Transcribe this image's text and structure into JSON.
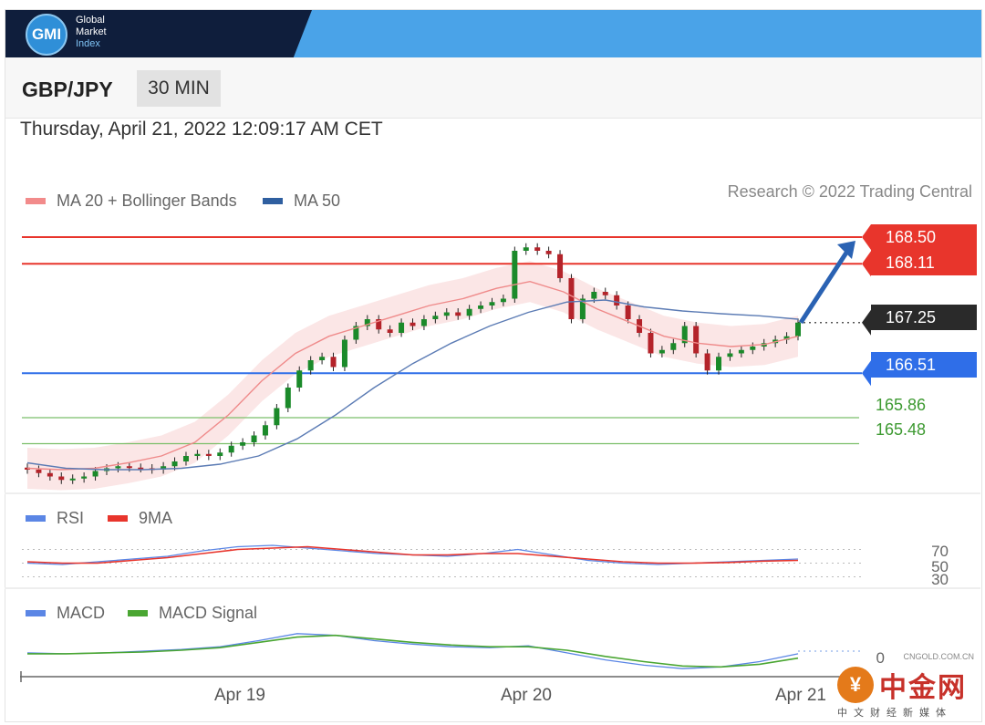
{
  "brand": {
    "logo": "GMI",
    "line1": "Global",
    "line2": "Market",
    "line3": "Index"
  },
  "header": {
    "symbol": "GBP/JPY",
    "timeframe": "30 MIN"
  },
  "datetime": "Thursday, April 21, 2022 12:09:17 AM CET",
  "legend": {
    "ma20": "MA 20 + Bollinger Bands",
    "ma50": "MA 50",
    "credit": "Research © 2022 Trading Central",
    "colors": {
      "ma20": "#f28b8b",
      "ma50": "#2f5fa0"
    }
  },
  "levels": [
    {
      "value": 168.5,
      "label": "168.50",
      "kind": "resistance",
      "color": "#e8352c"
    },
    {
      "value": 168.11,
      "label": "168.11",
      "kind": "resistance",
      "color": "#e8352c"
    },
    {
      "value": 167.25,
      "label": "167.25",
      "kind": "last",
      "color": "#222222"
    },
    {
      "value": 166.51,
      "label": "166.51",
      "kind": "pivot",
      "color": "#2f6ee8"
    },
    {
      "value": 165.86,
      "label": "165.86",
      "kind": "support",
      "color": "#3e9a32"
    },
    {
      "value": 165.48,
      "label": "165.48",
      "kind": "support",
      "color": "#3e9a32"
    }
  ],
  "rsi": {
    "label": "RSI",
    "ma_label": "9MA",
    "ticks": [
      "70",
      "50",
      "30"
    ],
    "colors": {
      "rsi": "#5b86e5",
      "ma": "#e8352c"
    }
  },
  "macd": {
    "label": "MACD",
    "signal_label": "MACD Signal",
    "zero_tick": "0",
    "colors": {
      "macd": "#5b86e5",
      "signal": "#4aa632"
    }
  },
  "x_axis": {
    "ticks": [
      "Apr 19",
      "Apr 20",
      "Apr 21"
    ]
  },
  "watermark": {
    "title": "中金网",
    "url": "CNGOLD.COM.CN",
    "sub": "中文财经新媒体"
  },
  "chart_data": {
    "type": "line",
    "title": "GBP/JPY",
    "subtitle": "30 MIN",
    "xlabel": "",
    "ylabel": "",
    "ylim": [
      164.9,
      168.7
    ],
    "x_ticks": [
      "Apr 19",
      "Apr 20",
      "Apr 21"
    ],
    "grid": false,
    "legend_position": "top-left",
    "levels": [
      168.5,
      168.11,
      167.25,
      166.51,
      165.86,
      165.48
    ],
    "arrow": {
      "from": 167.25,
      "to": 168.5,
      "direction": "up"
    },
    "series": [
      {
        "name": "GBP/JPY",
        "values": [
          165.1,
          165.05,
          165.0,
          164.95,
          164.97,
          165.0,
          165.08,
          165.12,
          165.15,
          165.13,
          165.12,
          165.1,
          165.15,
          165.22,
          165.3,
          165.33,
          165.3,
          165.35,
          165.45,
          165.5,
          165.6,
          165.75,
          166.0,
          166.3,
          166.55,
          166.7,
          166.75,
          166.6,
          167.0,
          167.2,
          167.3,
          167.15,
          167.1,
          167.25,
          167.2,
          167.3,
          167.35,
          167.4,
          167.35,
          167.45,
          167.5,
          167.55,
          167.6,
          168.3,
          168.35,
          168.3,
          168.25,
          167.9,
          167.3,
          167.6,
          167.7,
          167.65,
          167.5,
          167.3,
          167.1,
          166.8,
          166.85,
          166.95,
          167.2,
          166.8,
          166.55,
          166.75,
          166.8,
          166.85,
          166.9,
          166.95,
          167.0,
          167.05,
          167.25
        ]
      },
      {
        "name": "MA 20 + Bollinger Bands",
        "values": [
          165.12,
          165.1,
          165.12,
          165.2,
          165.3,
          165.5,
          165.9,
          166.4,
          166.8,
          167.05,
          167.2,
          167.35,
          167.5,
          167.6,
          167.75,
          167.85,
          167.7,
          167.45,
          167.25,
          167.05,
          166.95,
          166.9,
          166.93,
          167.05
        ]
      },
      {
        "name": "MA 50",
        "values": [
          165.2,
          165.12,
          165.1,
          165.1,
          165.12,
          165.18,
          165.3,
          165.55,
          165.9,
          166.3,
          166.65,
          166.95,
          167.2,
          167.4,
          167.55,
          167.58,
          167.48,
          167.42,
          167.38,
          167.35,
          167.3
        ]
      },
      {
        "name": "RSI",
        "values": [
          50,
          48,
          52,
          56,
          60,
          68,
          74,
          76,
          72,
          68,
          64,
          62,
          60,
          64,
          70,
          62,
          54,
          50,
          48,
          50,
          52,
          54,
          56
        ]
      },
      {
        "name": "9MA",
        "values": [
          52,
          50,
          50,
          54,
          58,
          64,
          70,
          72,
          74,
          70,
          66,
          62,
          62,
          64,
          64,
          60,
          56,
          52,
          50,
          50,
          51,
          53,
          54
        ]
      },
      {
        "name": "MACD",
        "values": [
          -0.02,
          -0.03,
          -0.02,
          0.0,
          0.02,
          0.05,
          0.12,
          0.2,
          0.18,
          0.12,
          0.08,
          0.05,
          0.04,
          0.06,
          -0.02,
          -0.1,
          -0.16,
          -0.2,
          -0.18,
          -0.12,
          -0.03
        ]
      },
      {
        "name": "MACD Signal",
        "values": [
          -0.03,
          -0.03,
          -0.02,
          -0.01,
          0.01,
          0.04,
          0.1,
          0.16,
          0.18,
          0.14,
          0.1,
          0.07,
          0.05,
          0.05,
          0.01,
          -0.06,
          -0.12,
          -0.17,
          -0.18,
          -0.15,
          -0.08
        ]
      }
    ]
  }
}
